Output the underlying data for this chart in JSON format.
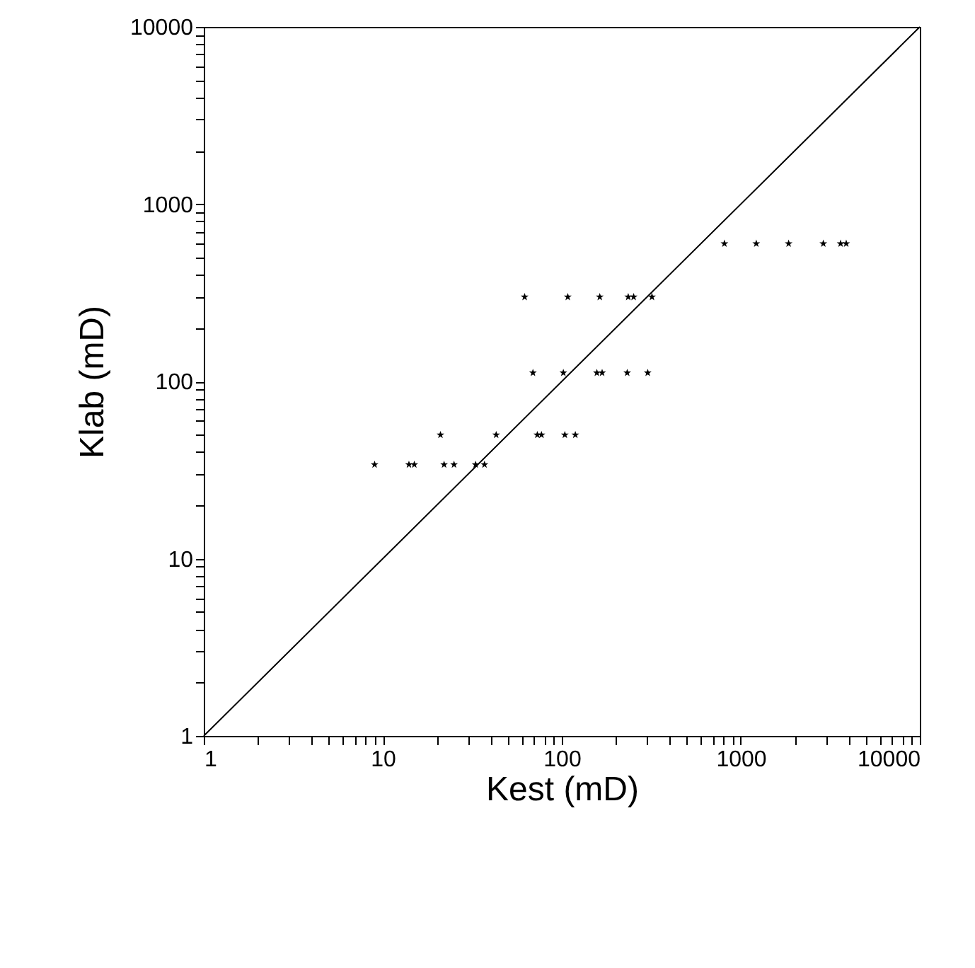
{
  "chart_data": {
    "type": "scatter",
    "xlabel": "Kest (mD)",
    "ylabel": "Klab (mD)",
    "log": "xy",
    "grid": false,
    "marker": "star",
    "xlim": [
      1,
      10000
    ],
    "ylim": [
      1,
      10000
    ],
    "xticks": [
      1,
      {
        "value": 2,
        "label": null
      },
      {
        "value": 3,
        "label": null
      },
      {
        "value": 4,
        "label": null
      },
      {
        "value": 5,
        "label": null
      },
      {
        "value": 6,
        "label": null
      },
      {
        "value": 7,
        "label": null
      },
      {
        "value": 8,
        "label": null
      },
      {
        "value": 9,
        "label": null
      },
      10,
      {
        "value": 20,
        "label": null
      },
      {
        "value": 30,
        "label": null
      },
      {
        "value": 40,
        "label": null
      },
      {
        "value": 50,
        "label": null
      },
      {
        "value": 60,
        "label": null
      },
      {
        "value": 70,
        "label": null
      },
      {
        "value": 80,
        "label": null
      },
      {
        "value": 90,
        "label": null
      },
      100,
      {
        "value": 200,
        "label": null
      },
      {
        "value": 300,
        "label": null
      },
      {
        "value": 400,
        "label": null
      },
      {
        "value": 500,
        "label": null
      },
      {
        "value": 600,
        "label": null
      },
      {
        "value": 700,
        "label": null
      },
      {
        "value": 800,
        "label": null
      },
      {
        "value": 900,
        "label": null
      },
      1000,
      {
        "value": 2000,
        "label": null
      },
      {
        "value": 3000,
        "label": null
      },
      {
        "value": 4000,
        "label": null
      },
      {
        "value": 5000,
        "label": null
      },
      {
        "value": 6000,
        "label": null
      },
      {
        "value": 7000,
        "label": null
      },
      {
        "value": 8000,
        "label": null
      },
      {
        "value": 9000,
        "label": null
      },
      10000
    ],
    "yticks": [
      1,
      {
        "value": 2,
        "label": null
      },
      {
        "value": 3,
        "label": null
      },
      {
        "value": 4,
        "label": null
      },
      {
        "value": 5,
        "label": null
      },
      {
        "value": 6,
        "label": null
      },
      {
        "value": 7,
        "label": null
      },
      {
        "value": 8,
        "label": null
      },
      {
        "value": 9,
        "label": null
      },
      10,
      {
        "value": 20,
        "label": null
      },
      {
        "value": 30,
        "label": null
      },
      {
        "value": 40,
        "label": null
      },
      {
        "value": 50,
        "label": null
      },
      {
        "value": 60,
        "label": null
      },
      {
        "value": 70,
        "label": null
      },
      {
        "value": 80,
        "label": null
      },
      {
        "value": 90,
        "label": null
      },
      100,
      {
        "value": 200,
        "label": null
      },
      {
        "value": 300,
        "label": null
      },
      {
        "value": 400,
        "label": null
      },
      {
        "value": 500,
        "label": null
      },
      {
        "value": 600,
        "label": null
      },
      {
        "value": 700,
        "label": null
      },
      {
        "value": 800,
        "label": null
      },
      {
        "value": 900,
        "label": null
      },
      1000,
      {
        "value": 2000,
        "label": null
      },
      {
        "value": 3000,
        "label": null
      },
      {
        "value": 4000,
        "label": null
      },
      {
        "value": 5000,
        "label": null
      },
      {
        "value": 6000,
        "label": null
      },
      {
        "value": 7000,
        "label": null
      },
      {
        "value": 8000,
        "label": null
      },
      {
        "value": 9000,
        "label": null
      },
      10000
    ],
    "series": [
      {
        "color": "#000000",
        "x": [
          9,
          14,
          15,
          22,
          25,
          33,
          37,
          21,
          43,
          73,
          77,
          104,
          119,
          69,
          102,
          157,
          168,
          232,
          302,
          62,
          108,
          163,
          235,
          252,
          319,
          810,
          1220,
          1850,
          2890,
          3610,
          3880
        ],
        "values": [
          34,
          34,
          34,
          34,
          34,
          34,
          34,
          50,
          50,
          50,
          50,
          50,
          50,
          112,
          112,
          112,
          112,
          112,
          112,
          300,
          300,
          300,
          300,
          300,
          300,
          600,
          600,
          600,
          600,
          600,
          600
        ]
      },
      {
        "type": "line",
        "marker": "none",
        "color": "#000000",
        "x": [
          1,
          10,
          10000
        ],
        "values": [
          1,
          10,
          10000
        ]
      }
    ]
  }
}
